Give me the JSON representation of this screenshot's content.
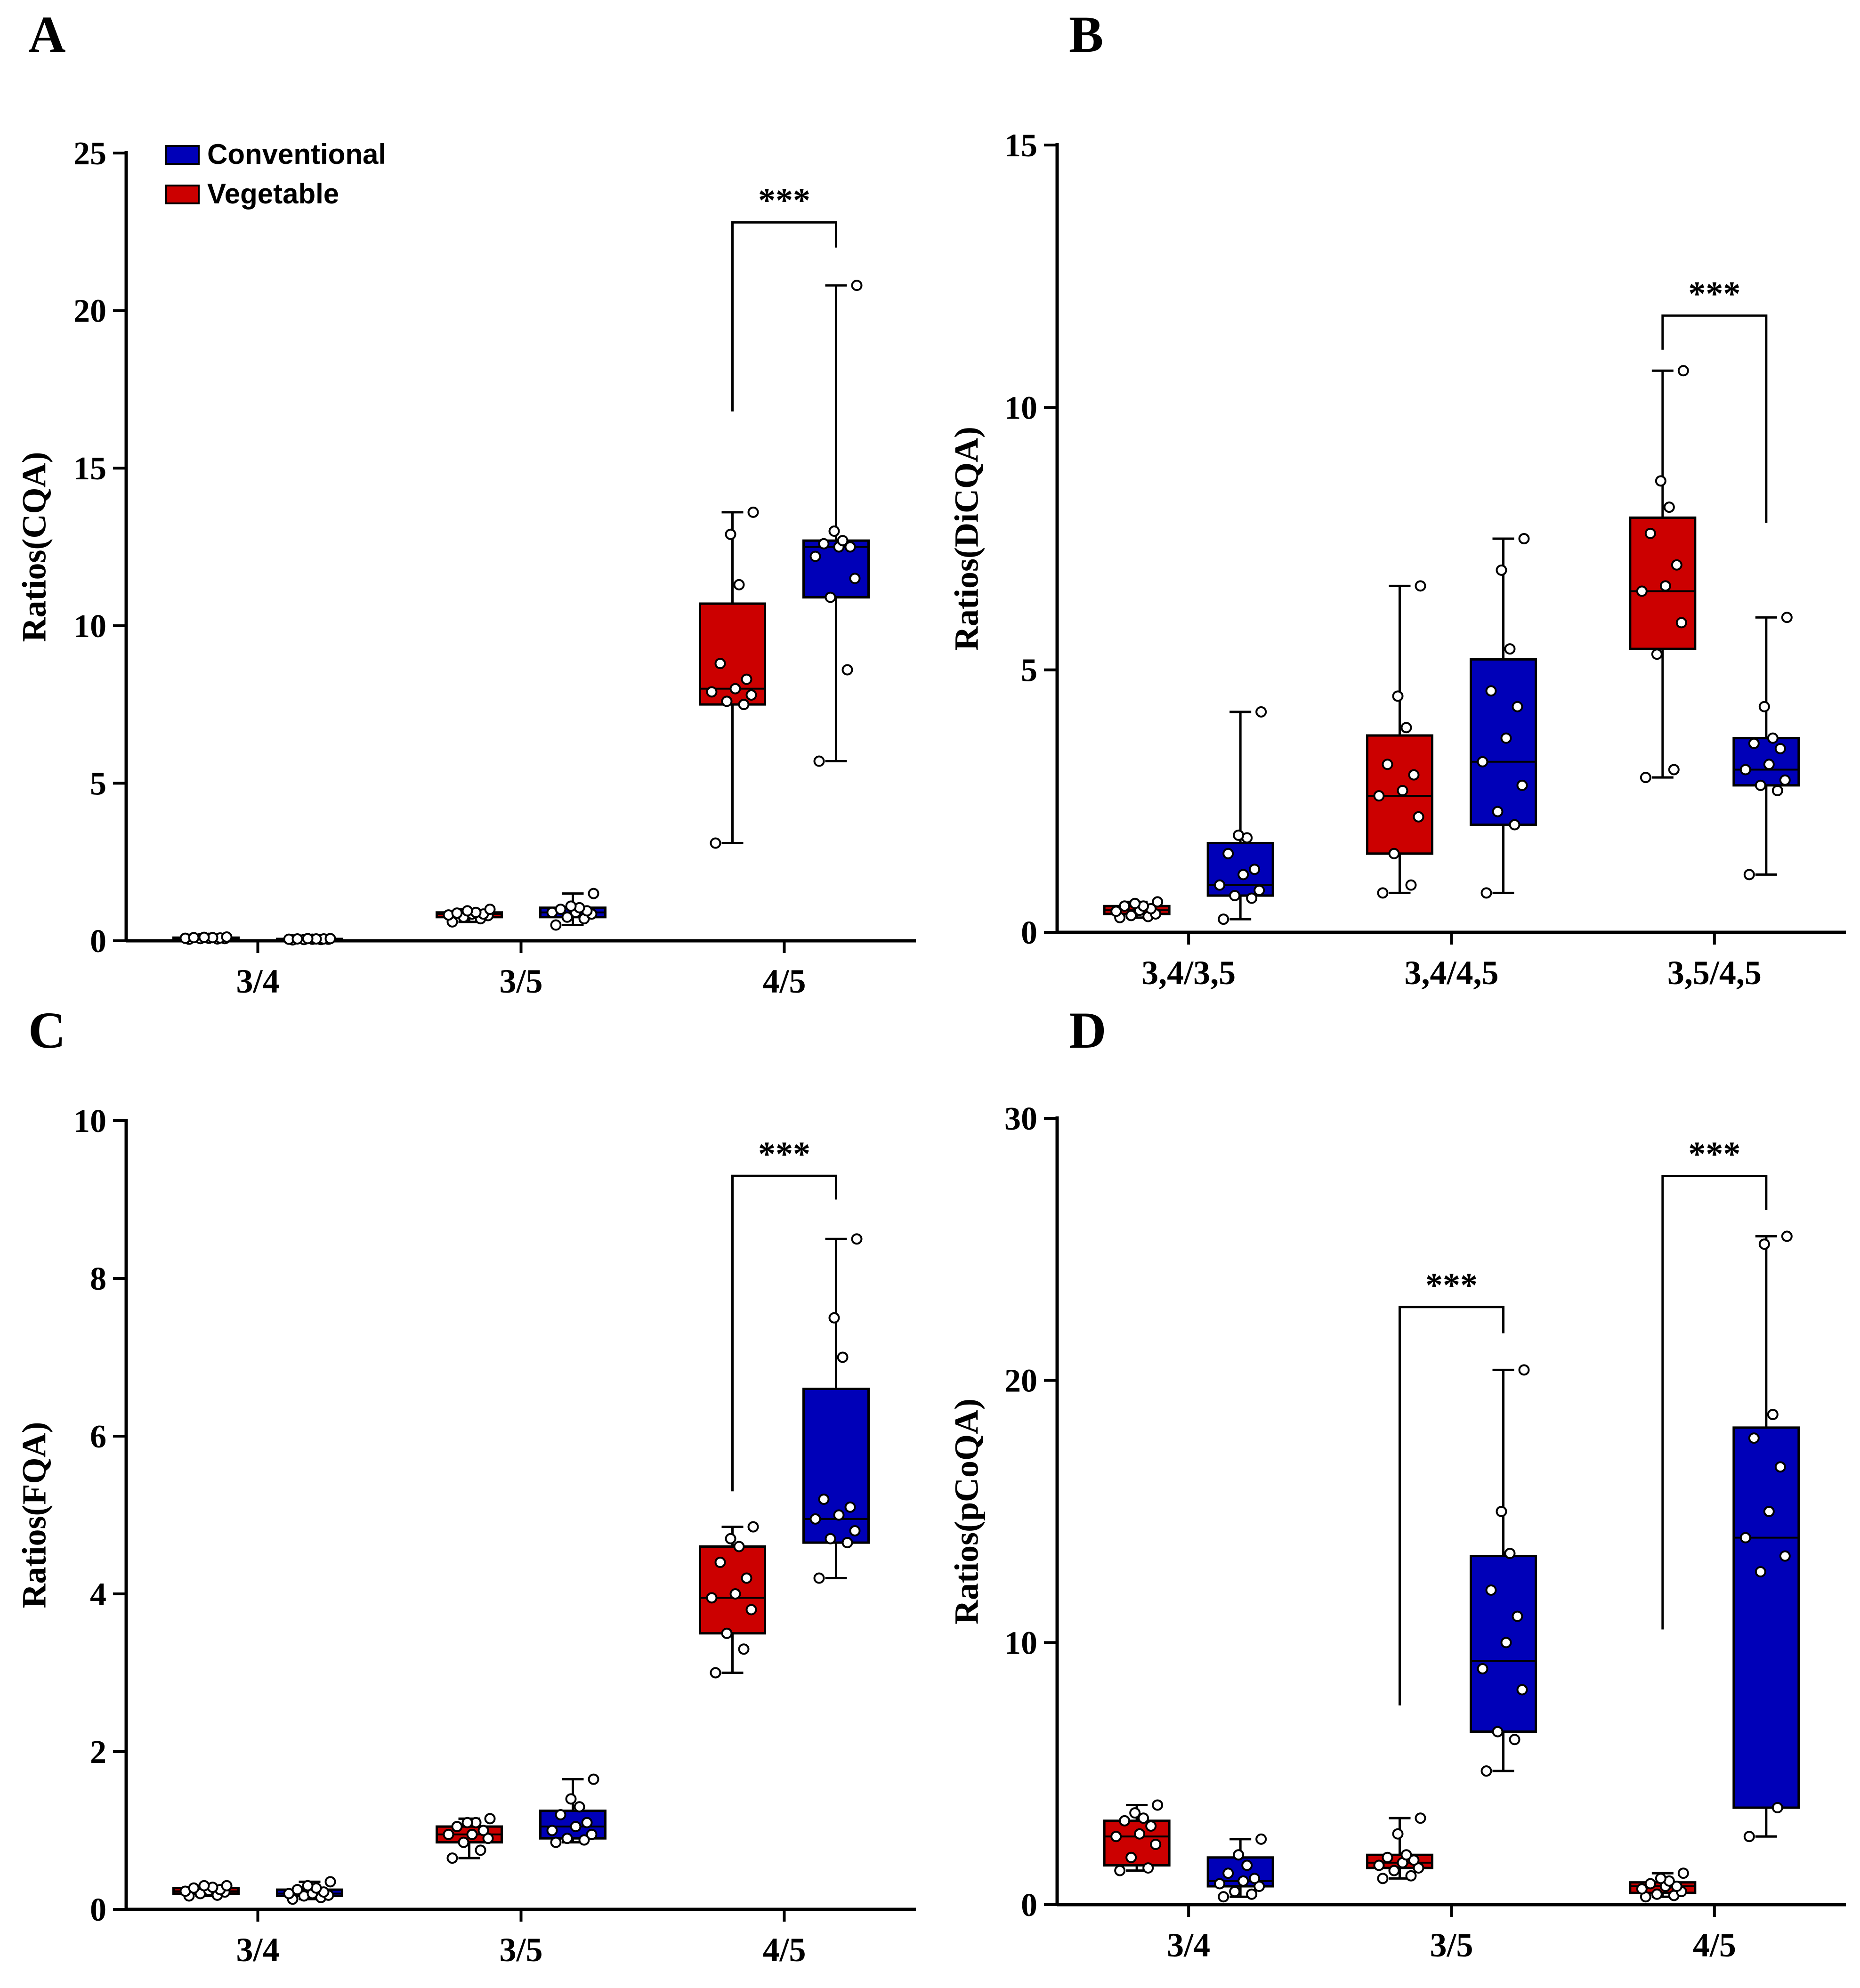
{
  "colors": {
    "vegetable": "#cc0000",
    "conventional": "#0000b8",
    "axis": "#000000",
    "point_fill": "#ffffff"
  },
  "legend": {
    "items": [
      {
        "key": "conventional",
        "label": "Conventional"
      },
      {
        "key": "vegetable",
        "label": "Vegetable"
      }
    ]
  },
  "chart_data": [
    {
      "panel": "A",
      "type": "box",
      "ylabel": "Ratios(CQA)",
      "ylim": [
        0,
        25
      ],
      "yticks": [
        0,
        5,
        10,
        15,
        20,
        25
      ],
      "categories": [
        "3/4",
        "3/5",
        "4/5"
      ],
      "series_order": [
        "vegetable",
        "conventional"
      ],
      "groups": [
        {
          "category": "3/4",
          "series": "vegetable",
          "min": 0.05,
          "q1": 0.07,
          "median": 0.08,
          "q3": 0.1,
          "max": 0.12,
          "points": [
            0.05,
            0.06,
            0.07,
            0.07,
            0.08,
            0.08,
            0.09,
            0.1,
            0.1,
            0.11,
            0.12
          ]
        },
        {
          "category": "3/4",
          "series": "conventional",
          "min": 0.03,
          "q1": 0.04,
          "median": 0.05,
          "q3": 0.06,
          "max": 0.07,
          "points": [
            0.03,
            0.04,
            0.04,
            0.05,
            0.05,
            0.05,
            0.06,
            0.06,
            0.06,
            0.07,
            0.07
          ]
        },
        {
          "category": "3/5",
          "series": "vegetable",
          "min": 0.6,
          "q1": 0.75,
          "median": 0.85,
          "q3": 0.9,
          "max": 1.0,
          "points": [
            0.6,
            0.7,
            0.75,
            0.8,
            0.82,
            0.85,
            0.85,
            0.88,
            0.9,
            0.95,
            1.0
          ]
        },
        {
          "category": "3/5",
          "series": "conventional",
          "min": 0.5,
          "q1": 0.75,
          "median": 0.9,
          "q3": 1.05,
          "max": 1.5,
          "points": [
            0.5,
            0.7,
            0.75,
            0.85,
            0.9,
            0.9,
            0.95,
            1.0,
            1.05,
            1.1,
            1.5
          ]
        },
        {
          "category": "4/5",
          "series": "vegetable",
          "min": 3.1,
          "q1": 7.5,
          "median": 8.0,
          "q3": 10.7,
          "max": 13.6,
          "points": [
            3.1,
            7.5,
            7.6,
            7.8,
            7.9,
            8.0,
            8.3,
            8.8,
            11.3,
            12.9,
            13.6
          ]
        },
        {
          "category": "4/5",
          "series": "conventional",
          "min": 5.7,
          "q1": 10.9,
          "median": 12.5,
          "q3": 12.7,
          "max": 20.8,
          "points": [
            5.7,
            8.6,
            10.9,
            11.5,
            12.2,
            12.5,
            12.5,
            12.6,
            12.7,
            13.0,
            20.8
          ]
        }
      ],
      "significance": [
        {
          "category": "4/5",
          "label": "***",
          "bracket_y": 22.8,
          "left_y": 16.8,
          "right_y": 22.0
        }
      ]
    },
    {
      "panel": "B",
      "type": "box",
      "ylabel": "Ratios(DiCQA)",
      "ylim": [
        0,
        15
      ],
      "yticks": [
        0,
        5,
        10,
        15
      ],
      "categories": [
        "3,4/3,5",
        "3,4/4,5",
        "3,5/4,5"
      ],
      "series_order": [
        "vegetable",
        "conventional"
      ],
      "groups": [
        {
          "category": "3,4/3,5",
          "series": "vegetable",
          "min": 0.28,
          "q1": 0.35,
          "median": 0.42,
          "q3": 0.5,
          "max": 0.58,
          "points": [
            0.28,
            0.3,
            0.32,
            0.35,
            0.4,
            0.42,
            0.45,
            0.5,
            0.5,
            0.55,
            0.58
          ]
        },
        {
          "category": "3,4/3,5",
          "series": "conventional",
          "min": 0.25,
          "q1": 0.7,
          "median": 0.9,
          "q3": 1.7,
          "max": 4.2,
          "points": [
            0.25,
            0.65,
            0.7,
            0.8,
            0.9,
            1.1,
            1.2,
            1.5,
            1.8,
            1.85,
            4.2
          ]
        },
        {
          "category": "3,4/4,5",
          "series": "vegetable",
          "min": 0.75,
          "q1": 1.5,
          "median": 2.6,
          "q3": 3.75,
          "max": 6.6,
          "points": [
            0.75,
            0.9,
            1.5,
            2.2,
            2.6,
            2.7,
            3.0,
            3.2,
            3.9,
            4.5,
            6.6
          ]
        },
        {
          "category": "3,4/4,5",
          "series": "conventional",
          "min": 0.75,
          "q1": 2.05,
          "median": 3.25,
          "q3": 5.2,
          "max": 7.5,
          "points": [
            0.75,
            2.05,
            2.3,
            2.8,
            3.25,
            3.7,
            4.3,
            4.6,
            5.4,
            6.9,
            7.5
          ]
        },
        {
          "category": "3,5/4,5",
          "series": "vegetable",
          "min": 2.95,
          "q1": 5.4,
          "median": 6.5,
          "q3": 7.9,
          "max": 10.7,
          "points": [
            2.95,
            3.1,
            5.3,
            5.9,
            6.5,
            6.6,
            7.0,
            7.6,
            8.1,
            8.6,
            10.7
          ]
        },
        {
          "category": "3,5/4,5",
          "series": "conventional",
          "min": 1.1,
          "q1": 2.8,
          "median": 3.1,
          "q3": 3.7,
          "max": 6.0,
          "points": [
            1.1,
            2.7,
            2.8,
            2.9,
            3.1,
            3.2,
            3.5,
            3.6,
            3.7,
            4.3,
            6.0
          ]
        }
      ],
      "significance": [
        {
          "category": "3,5/4,5",
          "label": "***",
          "bracket_y": 11.75,
          "left_y": 11.1,
          "right_y": 7.8
        }
      ]
    },
    {
      "panel": "C",
      "type": "box",
      "ylabel": "Ratios(FQA)",
      "ylim": [
        0,
        10
      ],
      "yticks": [
        0,
        2,
        4,
        6,
        8,
        10
      ],
      "categories": [
        "3/4",
        "3/5",
        "4/5"
      ],
      "series_order": [
        "vegetable",
        "conventional"
      ],
      "groups": [
        {
          "category": "3/4",
          "series": "vegetable",
          "min": 0.17,
          "q1": 0.2,
          "median": 0.23,
          "q3": 0.27,
          "max": 0.3,
          "points": [
            0.17,
            0.18,
            0.2,
            0.22,
            0.23,
            0.24,
            0.25,
            0.27,
            0.28,
            0.3,
            0.3
          ]
        },
        {
          "category": "3/4",
          "series": "conventional",
          "min": 0.13,
          "q1": 0.17,
          "median": 0.2,
          "q3": 0.25,
          "max": 0.35,
          "points": [
            0.13,
            0.15,
            0.17,
            0.18,
            0.2,
            0.2,
            0.22,
            0.25,
            0.27,
            0.3,
            0.35
          ]
        },
        {
          "category": "3/5",
          "series": "vegetable",
          "min": 0.65,
          "q1": 0.85,
          "median": 0.95,
          "q3": 1.05,
          "max": 1.15,
          "points": [
            0.65,
            0.75,
            0.85,
            0.9,
            0.95,
            0.95,
            1.0,
            1.05,
            1.1,
            1.1,
            1.15
          ]
        },
        {
          "category": "3/5",
          "series": "conventional",
          "min": 0.85,
          "q1": 0.9,
          "median": 1.05,
          "q3": 1.25,
          "max": 1.65,
          "points": [
            0.85,
            0.88,
            0.9,
            0.95,
            1.0,
            1.05,
            1.1,
            1.2,
            1.3,
            1.4,
            1.65
          ]
        },
        {
          "category": "4/5",
          "series": "vegetable",
          "min": 3.0,
          "q1": 3.5,
          "median": 3.95,
          "q3": 4.6,
          "max": 4.85,
          "points": [
            3.0,
            3.3,
            3.5,
            3.8,
            3.95,
            4.0,
            4.2,
            4.4,
            4.6,
            4.7,
            4.85
          ]
        },
        {
          "category": "4/5",
          "series": "conventional",
          "min": 4.2,
          "q1": 4.65,
          "median": 4.95,
          "q3": 6.6,
          "max": 8.5,
          "points": [
            4.2,
            4.65,
            4.7,
            4.8,
            4.95,
            5.0,
            5.1,
            5.2,
            7.0,
            7.5,
            8.5
          ]
        }
      ],
      "significance": [
        {
          "category": "4/5",
          "label": "***",
          "bracket_y": 9.3,
          "left_y": 5.3,
          "right_y": 9.0
        }
      ]
    },
    {
      "panel": "D",
      "type": "box",
      "ylabel": "Ratios(pCoQA)",
      "ylim": [
        0,
        30
      ],
      "yticks": [
        0,
        10,
        20,
        30
      ],
      "categories": [
        "3/4",
        "3/5",
        "4/5"
      ],
      "series_order": [
        "vegetable",
        "conventional"
      ],
      "groups": [
        {
          "category": "3/4",
          "series": "vegetable",
          "min": 1.3,
          "q1": 1.5,
          "median": 2.6,
          "q3": 3.2,
          "max": 3.8,
          "points": [
            1.3,
            1.4,
            1.8,
            2.3,
            2.6,
            2.7,
            3.0,
            3.2,
            3.3,
            3.5,
            3.8
          ]
        },
        {
          "category": "3/4",
          "series": "conventional",
          "min": 0.3,
          "q1": 0.7,
          "median": 0.9,
          "q3": 1.8,
          "max": 2.5,
          "points": [
            0.3,
            0.4,
            0.5,
            0.7,
            0.8,
            0.9,
            1.0,
            1.2,
            1.5,
            1.9,
            2.5
          ]
        },
        {
          "category": "3/5",
          "series": "vegetable",
          "min": 1.0,
          "q1": 1.4,
          "median": 1.6,
          "q3": 1.9,
          "max": 3.3,
          "points": [
            1.0,
            1.1,
            1.3,
            1.4,
            1.5,
            1.6,
            1.7,
            1.8,
            1.9,
            2.7,
            3.3
          ]
        },
        {
          "category": "3/5",
          "series": "conventional",
          "min": 5.1,
          "q1": 6.6,
          "median": 9.3,
          "q3": 13.3,
          "max": 20.4,
          "points": [
            5.1,
            6.3,
            6.6,
            8.2,
            9.0,
            10.0,
            11.0,
            12.0,
            13.4,
            15.0,
            20.4
          ]
        },
        {
          "category": "4/5",
          "series": "vegetable",
          "min": 0.3,
          "q1": 0.45,
          "median": 0.7,
          "q3": 0.85,
          "max": 1.2,
          "points": [
            0.3,
            0.35,
            0.4,
            0.5,
            0.6,
            0.7,
            0.7,
            0.8,
            0.9,
            1.0,
            1.2
          ]
        },
        {
          "category": "4/5",
          "series": "conventional",
          "min": 2.6,
          "q1": 3.7,
          "median": 14.0,
          "q3": 18.2,
          "max": 25.5,
          "points": [
            2.6,
            3.7,
            12.7,
            13.3,
            14.0,
            15.0,
            16.7,
            17.8,
            18.7,
            25.2,
            25.5
          ]
        }
      ],
      "significance": [
        {
          "category": "3/5",
          "label": "***",
          "bracket_y": 22.8,
          "left_y": 7.6,
          "right_y": 21.8
        },
        {
          "category": "4/5",
          "label": "***",
          "bracket_y": 27.8,
          "left_y": 10.5,
          "right_y": 26.5
        }
      ]
    }
  ]
}
